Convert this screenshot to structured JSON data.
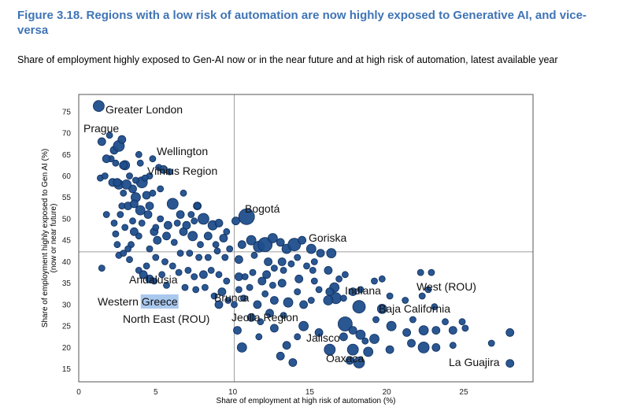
{
  "title": "Figure 3.18. Regions with a low risk of automation are now highly exposed to Generative AI, and vice-versa",
  "subtitle": "Share of employment highly exposed to Gen-AI now or in the near future and at high risk of automation, latest available year",
  "colors": {
    "marker": "#1f4e8c",
    "marker_edge": "#0f2f5c",
    "highlight": "#a9c8ee",
    "grid": "#9e9e9e",
    "frame": "#555555",
    "title": "#3f74b5"
  },
  "chart_data": {
    "type": "scatter",
    "title": "Figure 3.18. Regions with a low risk of automation are now highly exposed to Generative AI, and vice-versa",
    "xlabel": "Share of employment at high risk of automation  (%)",
    "ylabel": "Share of employment highly exposed to Gen AI (%)",
    "ylabel2": "(now or near future)",
    "xlim": [
      0,
      29.5
    ],
    "ylim": [
      12,
      79
    ],
    "xticks": [
      0,
      5,
      10,
      15,
      20,
      25
    ],
    "yticks": [
      15,
      20,
      25,
      30,
      35,
      40,
      45,
      50,
      55,
      60,
      65,
      70,
      75
    ],
    "reference_lines": {
      "x": 10.1,
      "y": 42.3
    },
    "labels": [
      {
        "text": "Greater London",
        "x": 1.3,
        "y": 76.3
      },
      {
        "text": "Prague",
        "x": 2.0,
        "y": 69.5
      },
      {
        "text": "Wellington",
        "x": 5.8,
        "y": 63.5
      },
      {
        "text": "Vilnius Region",
        "x": 7.0,
        "y": 58.9
      },
      {
        "text": "Bogotá",
        "x": 11.0,
        "y": 50.5
      },
      {
        "text": "Goriska",
        "x": 16.0,
        "y": 44.0
      },
      {
        "text": "Andalusia",
        "x": 5.1,
        "y": 35.0
      },
      {
        "text": "West (ROU)",
        "x": 22.5,
        "y": 35.5
      },
      {
        "text": "Indiana",
        "x": 16.8,
        "y": 34.0
      },
      {
        "text": "Brunca",
        "x": 9.1,
        "y": 31.5
      },
      {
        "text": "Western Greece",
        "x": 4.5,
        "y": 30.5,
        "highlight": "Greece"
      },
      {
        "text": "Baja California",
        "x": 19.4,
        "y": 29.2
      },
      {
        "text": "North East (ROU)",
        "x": 6.9,
        "y": 26.5
      },
      {
        "text": "Jeolla Region",
        "x": 13.5,
        "y": 26.0
      },
      {
        "text": "Jalisco",
        "x": 17.2,
        "y": 19.5
      },
      {
        "text": "Oaxaca",
        "x": 18.2,
        "y": 16.3
      },
      {
        "text": "La Guajira",
        "x": 28.0,
        "y": 16.3
      }
    ],
    "points": [
      [
        1.3,
        76.3,
        7
      ],
      [
        1.5,
        68,
        5
      ],
      [
        2,
        69.5,
        4
      ],
      [
        2.3,
        66,
        5
      ],
      [
        2.6,
        67,
        7
      ],
      [
        2.1,
        64,
        4
      ],
      [
        1.8,
        64,
        5
      ],
      [
        2.8,
        68.5,
        5
      ],
      [
        3.0,
        62.5,
        6
      ],
      [
        2.4,
        63,
        4
      ],
      [
        1.4,
        59.5,
        4
      ],
      [
        1.7,
        60,
        4
      ],
      [
        2.2,
        58.5,
        5
      ],
      [
        2.6,
        58,
        6
      ],
      [
        3.3,
        60,
        4
      ],
      [
        2.9,
        56,
        4
      ],
      [
        3.9,
        65,
        4
      ],
      [
        3.5,
        57,
        5
      ],
      [
        3.7,
        55,
        6
      ],
      [
        4.1,
        58.5,
        7
      ],
      [
        4.6,
        60,
        4
      ],
      [
        4.8,
        64,
        4
      ],
      [
        5.2,
        62,
        4
      ],
      [
        5.5,
        61.5,
        5
      ],
      [
        5.9,
        61,
        4
      ],
      [
        4.4,
        55.5,
        5
      ],
      [
        3.2,
        53,
        5
      ],
      [
        2.7,
        51,
        4
      ],
      [
        1.8,
        51,
        4
      ],
      [
        2.3,
        49,
        4
      ],
      [
        3.5,
        49.5,
        4
      ],
      [
        4.0,
        52,
        6
      ],
      [
        4.6,
        53,
        5
      ],
      [
        5.3,
        50,
        4
      ],
      [
        5.8,
        48.5,
        5
      ],
      [
        6.1,
        53.5,
        7
      ],
      [
        6.6,
        51,
        5
      ],
      [
        7.3,
        51,
        4
      ],
      [
        7.7,
        53,
        5
      ],
      [
        8.1,
        50,
        7
      ],
      [
        8.7,
        48.5,
        6
      ],
      [
        9.1,
        49,
        5
      ],
      [
        9.6,
        47,
        4
      ],
      [
        10.2,
        49.5,
        5
      ],
      [
        10.9,
        50.5,
        10
      ],
      [
        4.9,
        47,
        5
      ],
      [
        3.9,
        46,
        4
      ],
      [
        3.4,
        44,
        4
      ],
      [
        2.5,
        44,
        4
      ],
      [
        2.6,
        41.5,
        4
      ],
      [
        3.2,
        43,
        4
      ],
      [
        4.6,
        43,
        4
      ],
      [
        5.1,
        45,
        5
      ],
      [
        5.7,
        46,
        5
      ],
      [
        6.2,
        44.5,
        4
      ],
      [
        6.8,
        47,
        5
      ],
      [
        7.4,
        46,
        6
      ],
      [
        7.9,
        44,
        4
      ],
      [
        8.4,
        46,
        5
      ],
      [
        8.9,
        44,
        4
      ],
      [
        9.4,
        45.5,
        5
      ],
      [
        9.8,
        43,
        4
      ],
      [
        10.6,
        44,
        5
      ],
      [
        11.2,
        45,
        6
      ],
      [
        11.7,
        43.5,
        7
      ],
      [
        12.1,
        44,
        9
      ],
      [
        12.6,
        45.5,
        6
      ],
      [
        13.1,
        44.5,
        5
      ],
      [
        13.5,
        43,
        6
      ],
      [
        14,
        44,
        8
      ],
      [
        14.5,
        45,
        5
      ],
      [
        15.1,
        43,
        6
      ],
      [
        15.7,
        42,
        5
      ],
      [
        16.4,
        42,
        6
      ],
      [
        10.4,
        40.5,
        5
      ],
      [
        11.4,
        41.5,
        4
      ],
      [
        12.3,
        40,
        5
      ],
      [
        13.2,
        40,
        5
      ],
      [
        14.2,
        41,
        4
      ],
      [
        15.3,
        40,
        4
      ],
      [
        16.2,
        38,
        5
      ],
      [
        16.9,
        36,
        4
      ],
      [
        17.3,
        37,
        4
      ],
      [
        16.6,
        34,
        6
      ],
      [
        16.3,
        33,
        5
      ],
      [
        16.7,
        31.5,
        7
      ],
      [
        17.2,
        31.5,
        4
      ],
      [
        17.8,
        33,
        5
      ],
      [
        18.3,
        33.5,
        4
      ],
      [
        19.2,
        35.5,
        4
      ],
      [
        19.7,
        36,
        4
      ],
      [
        20.2,
        32,
        4
      ],
      [
        21.2,
        31,
        4
      ],
      [
        22.3,
        32,
        4
      ],
      [
        22.7,
        33.5,
        4
      ],
      [
        23.1,
        29.5,
        4
      ],
      [
        22.2,
        37.5,
        4
      ],
      [
        22.9,
        37.5,
        4
      ],
      [
        18.2,
        29.5,
        8
      ],
      [
        19.7,
        29,
        6
      ],
      [
        19.3,
        26.5,
        4
      ],
      [
        20.3,
        25,
        6
      ],
      [
        21.3,
        23.5,
        5
      ],
      [
        21.7,
        26.5,
        4
      ],
      [
        22.4,
        24,
        6
      ],
      [
        23.2,
        24,
        5
      ],
      [
        23.8,
        26,
        4
      ],
      [
        24.3,
        24,
        5
      ],
      [
        24.9,
        26,
        4
      ],
      [
        25.1,
        24.5,
        4
      ],
      [
        21.6,
        21,
        5
      ],
      [
        22.4,
        20,
        7
      ],
      [
        23.2,
        20,
        5
      ],
      [
        24.3,
        20.5,
        4
      ],
      [
        26.8,
        21,
        4
      ],
      [
        28.0,
        23.5,
        5
      ],
      [
        28.0,
        16.3,
        5
      ],
      [
        17.3,
        25.5,
        9
      ],
      [
        17.8,
        24,
        5
      ],
      [
        18.3,
        23,
        6
      ],
      [
        18.6,
        21.5,
        4
      ],
      [
        19.2,
        22,
        6
      ],
      [
        18.8,
        19,
        6
      ],
      [
        20.2,
        19.5,
        5
      ],
      [
        17.8,
        19.5,
        7
      ],
      [
        17.2,
        22.5,
        5
      ],
      [
        16.3,
        19.5,
        7
      ],
      [
        18.2,
        16.5,
        7
      ],
      [
        17.6,
        17,
        5
      ],
      [
        15.6,
        23.5,
        5
      ],
      [
        14.6,
        25,
        6
      ],
      [
        14.2,
        22.5,
        4
      ],
      [
        13.5,
        20.5,
        5
      ],
      [
        13.9,
        16.5,
        5
      ],
      [
        13.1,
        18,
        5
      ],
      [
        12.7,
        24.5,
        5
      ],
      [
        11.7,
        22.5,
        4
      ],
      [
        10.6,
        20,
        6
      ],
      [
        10.3,
        24,
        5
      ],
      [
        11.2,
        27,
        5
      ],
      [
        11.8,
        26,
        4
      ],
      [
        12.4,
        28,
        5
      ],
      [
        13.3,
        27.5,
        4
      ],
      [
        13.6,
        30.5,
        6
      ],
      [
        12.7,
        31,
        5
      ],
      [
        12.1,
        32.5,
        4
      ],
      [
        11.6,
        30,
        5
      ],
      [
        10.7,
        31.5,
        4
      ],
      [
        14.2,
        33,
        4
      ],
      [
        14.6,
        30,
        5
      ],
      [
        15.1,
        31,
        4
      ],
      [
        15.6,
        33.5,
        4
      ],
      [
        16.2,
        31,
        6
      ],
      [
        15.3,
        35.5,
        4
      ],
      [
        14.3,
        36,
        5
      ],
      [
        13.2,
        35,
        5
      ],
      [
        12.6,
        34.5,
        4
      ],
      [
        11.9,
        35.5,
        5
      ],
      [
        11.1,
        34,
        4
      ],
      [
        10.4,
        36.5,
        5
      ],
      [
        9.6,
        35.5,
        4
      ],
      [
        9.1,
        37,
        4
      ],
      [
        8.6,
        38,
        4
      ],
      [
        8.1,
        37,
        5
      ],
      [
        7.5,
        36.5,
        4
      ],
      [
        7.1,
        38,
        4
      ],
      [
        6.5,
        37.5,
        4
      ],
      [
        6.1,
        39,
        4
      ],
      [
        5.6,
        40,
        4
      ],
      [
        5.0,
        41,
        4
      ],
      [
        4.4,
        39,
        4
      ],
      [
        3.9,
        38,
        4
      ],
      [
        3.3,
        40.5,
        4
      ],
      [
        2.9,
        42,
        4
      ],
      [
        1.5,
        38.5,
        4
      ],
      [
        4.2,
        37,
        5
      ],
      [
        4.6,
        36,
        5
      ],
      [
        5.4,
        37,
        4
      ],
      [
        4.9,
        35.5,
        4
      ],
      [
        5.7,
        34.5,
        4
      ],
      [
        6.9,
        34,
        4
      ],
      [
        7.6,
        33.5,
        4
      ],
      [
        8.2,
        34,
        4
      ],
      [
        8.8,
        32,
        4
      ],
      [
        9.3,
        33,
        5
      ],
      [
        9.7,
        31,
        4
      ],
      [
        9.1,
        30,
        5
      ],
      [
        10.1,
        30,
        4
      ],
      [
        10.4,
        33.5,
        4
      ],
      [
        10.8,
        36.5,
        4
      ],
      [
        11.3,
        37.5,
        4
      ],
      [
        12.2,
        37,
        5
      ],
      [
        12.7,
        38.5,
        4
      ],
      [
        13.3,
        38,
        4
      ],
      [
        13.8,
        39.5,
        4
      ],
      [
        14.8,
        39,
        4
      ],
      [
        15.2,
        38,
        4
      ],
      [
        6.6,
        42,
        4
      ],
      [
        7.2,
        42,
        4
      ],
      [
        7.8,
        41,
        4
      ],
      [
        8.4,
        41,
        4
      ],
      [
        9.0,
        42.5,
        4
      ],
      [
        9.5,
        41,
        4
      ],
      [
        3.6,
        47,
        5
      ],
      [
        3.0,
        48,
        4
      ],
      [
        2.4,
        46.5,
        4
      ],
      [
        4.1,
        49,
        4
      ],
      [
        4.5,
        51,
        5
      ],
      [
        5.0,
        48,
        4
      ],
      [
        6.4,
        49,
        4
      ],
      [
        7.0,
        48.5,
        5
      ],
      [
        7.5,
        49.5,
        4
      ],
      [
        2.8,
        53,
        4
      ],
      [
        3.6,
        53.5,
        5
      ],
      [
        4.8,
        56,
        4
      ],
      [
        5.3,
        57,
        4
      ],
      [
        6.8,
        56,
        4
      ],
      [
        7.7,
        53,
        4
      ],
      [
        3.1,
        58,
        6
      ],
      [
        3.7,
        59,
        4
      ],
      [
        4.3,
        59.5,
        4
      ],
      [
        2.9,
        62.5,
        5
      ],
      [
        4.0,
        63,
        4
      ],
      [
        2.5,
        58.5,
        5
      ]
    ]
  }
}
